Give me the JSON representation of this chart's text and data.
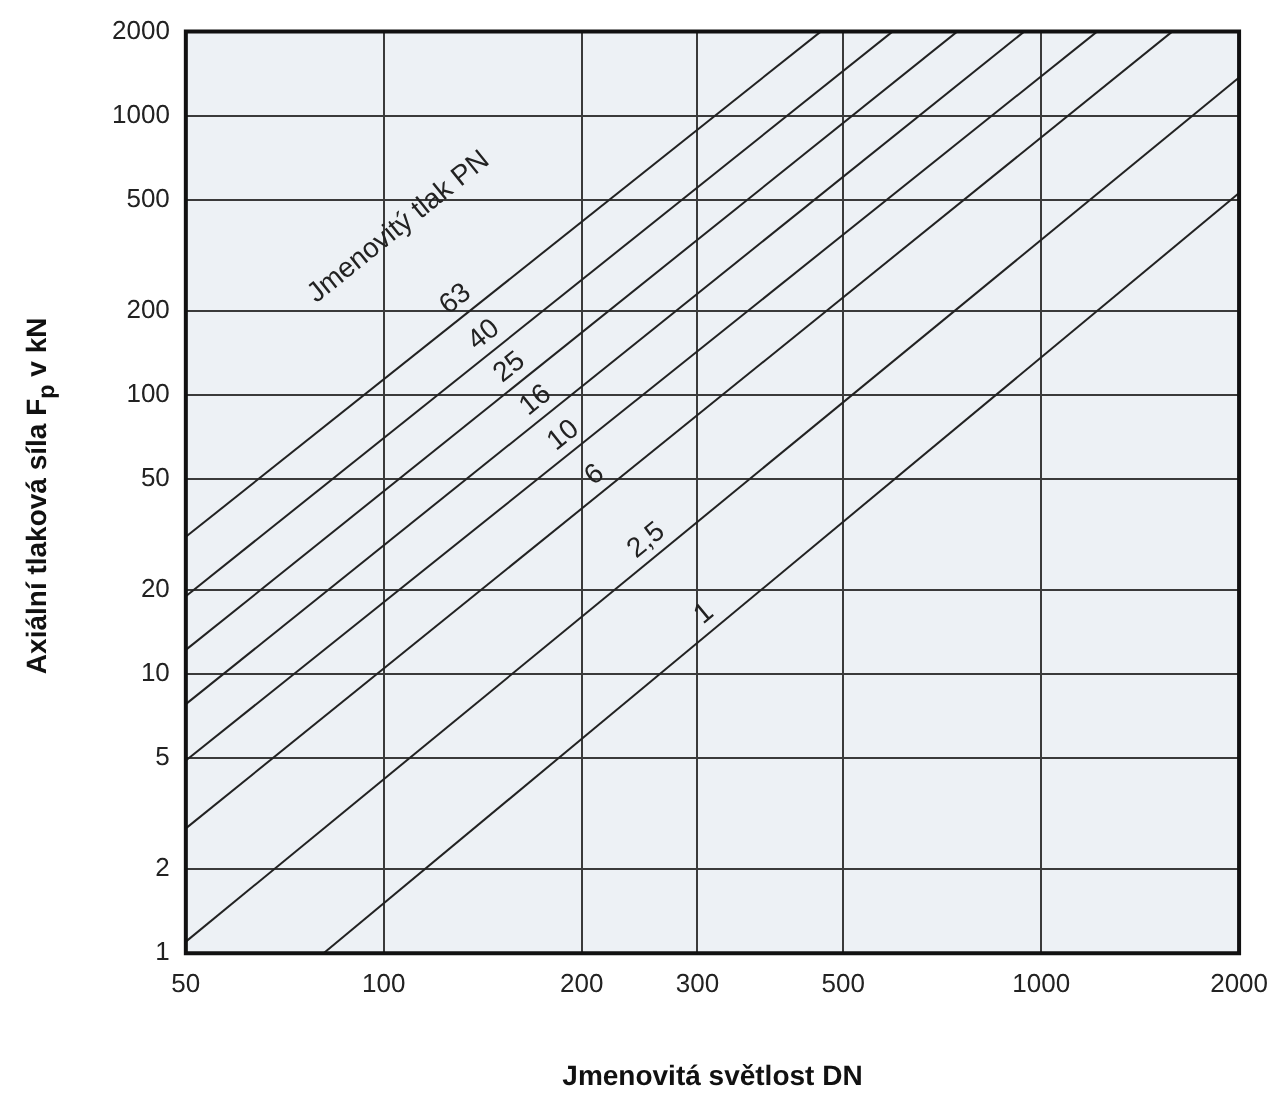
{
  "chart_data": {
    "type": "line",
    "xlabel": "Jmenovitá světlost DN",
    "ylabel": "Axiální tlaková síla F$_{p}$ v kN",
    "legend_title": "Jmenovitý tlak PN",
    "log": "xy",
    "grid": true,
    "legend": false,
    "marker": "none",
    "line_style": "solid",
    "xlim": [
      50,
      2000
    ],
    "xticks": [
      50,
      100,
      200,
      300,
      500,
      1000,
      2000
    ],
    "ylim": [
      1,
      2000
    ],
    "yticks": [
      1,
      2,
      5,
      10,
      20,
      50,
      100,
      200,
      500,
      1000,
      2000
    ],
    "series": [
      {
        "name": "63",
        "color": "#222222",
        "x": [
          50,
          462
        ],
        "values": [
          31,
          2000
        ]
      },
      {
        "name": "40",
        "color": "#222222",
        "x": [
          50,
          594
        ],
        "values": [
          19,
          2000
        ]
      },
      {
        "name": "25",
        "color": "#222222",
        "x": [
          50,
          745
        ],
        "values": [
          12.2,
          2000
        ]
      },
      {
        "name": "16",
        "color": "#222222",
        "x": [
          50,
          942
        ],
        "values": [
          7.8,
          2000
        ]
      },
      {
        "name": "10",
        "color": "#222222",
        "x": [
          50,
          1216
        ],
        "values": [
          4.9,
          2000
        ]
      },
      {
        "name": "6",
        "color": "#222222",
        "x": [
          50,
          1582
        ],
        "values": [
          2.8,
          2000
        ]
      },
      {
        "name": "2,5",
        "color": "#222222",
        "x": [
          50,
          2000
        ],
        "values": [
          1.1,
          1370
        ]
      },
      {
        "name": "1",
        "color": "#222222",
        "x": [
          81,
          2000
        ],
        "values": [
          1,
          528
        ]
      }
    ]
  }
}
